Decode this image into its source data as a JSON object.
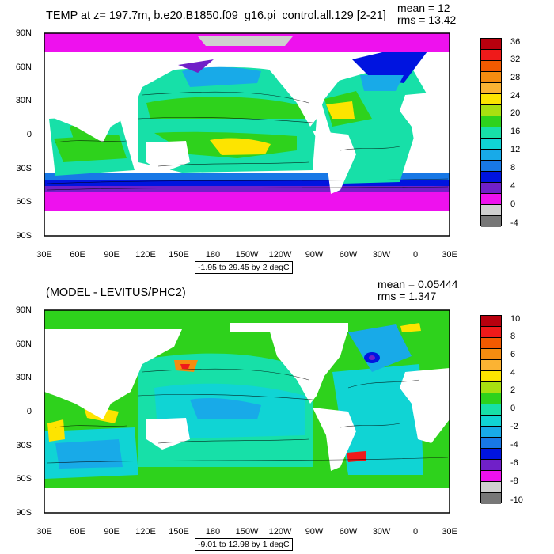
{
  "panels": [
    {
      "title": "TEMP at z= 197.7m, b.e20.B1850.f09_g16.pi_control.all.129 [2-21]",
      "stats": [
        "mean = 12",
        "rms = 13.42"
      ],
      "range_note": "-1.95 to 29.45 by 2 degC",
      "y_ticks": [
        "90N",
        "60N",
        "30N",
        "0",
        "30S",
        "60S",
        "90S"
      ],
      "x_ticks": [
        "30E",
        "60E",
        "90E",
        "120E",
        "150E",
        "180",
        "150W",
        "120W",
        "90W",
        "60W",
        "30W",
        "0",
        "30E"
      ],
      "colorbar_labels": [
        "36",
        "32",
        "28",
        "24",
        "20",
        "16",
        "12",
        "8",
        "4",
        "0",
        "-4"
      ],
      "colorbar_colors": [
        "#b8000e",
        "#ef1a1a",
        "#f25a00",
        "#f58c10",
        "#fbb333",
        "#fde400",
        "#a8e010",
        "#2ed21c",
        "#17e0a8",
        "#10d4d4",
        "#18aae8",
        "#1878e6",
        "#0014e0",
        "#7020c8",
        "#ee11ee",
        "#cfcfcf",
        "#777777"
      ]
    },
    {
      "title": "(MODEL - LEVITUS/PHC2)",
      "stats": [
        "mean = 0.05444",
        "rms = 1.347"
      ],
      "range_note": "-9.01 to 12.98 by 1 degC",
      "y_ticks": [
        "90N",
        "60N",
        "30N",
        "0",
        "30S",
        "60S",
        "90S"
      ],
      "x_ticks": [
        "30E",
        "60E",
        "90E",
        "120E",
        "150E",
        "180",
        "150W",
        "120W",
        "90W",
        "60W",
        "30W",
        "0",
        "30E"
      ],
      "colorbar_labels": [
        "10",
        "8",
        "6",
        "4",
        "2",
        "0",
        "-2",
        "-4",
        "-6",
        "-8",
        "-10"
      ],
      "colorbar_colors": [
        "#b8000e",
        "#ef1a1a",
        "#f25a00",
        "#f58c10",
        "#fbb333",
        "#fde400",
        "#a8e010",
        "#2ed21c",
        "#17e0a8",
        "#10d4d4",
        "#18aae8",
        "#1878e6",
        "#0014e0",
        "#7020c8",
        "#ee11ee",
        "#cfcfcf",
        "#777777"
      ]
    }
  ]
}
